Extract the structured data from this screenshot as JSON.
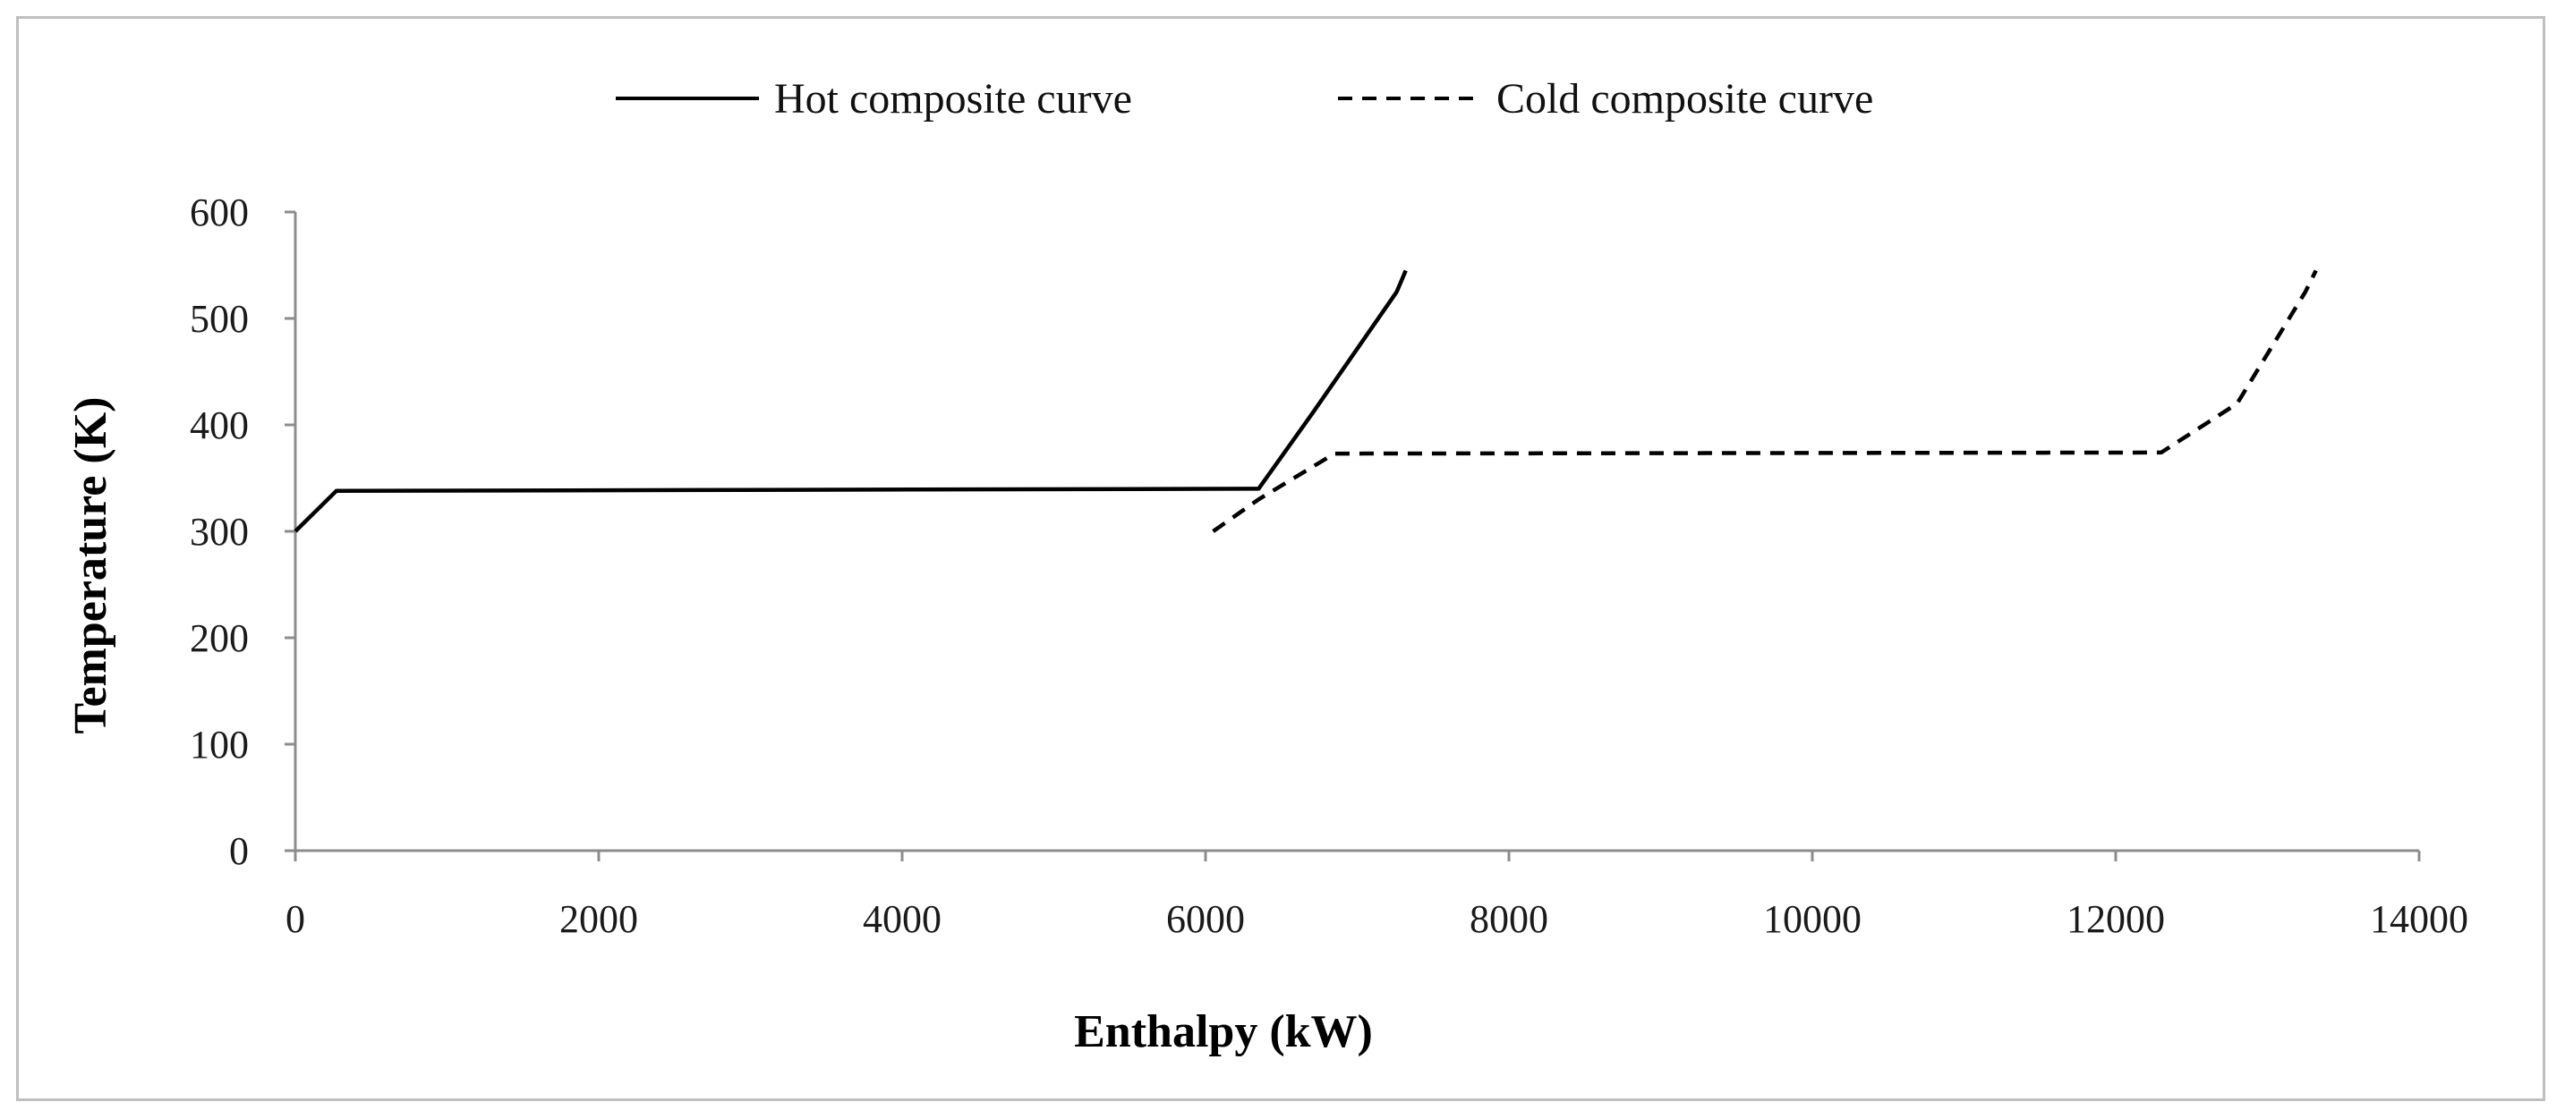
{
  "chart_data": {
    "type": "line",
    "title": "",
    "xlabel": "Enthalpy (kW)",
    "ylabel": "Temperature (K)",
    "xlim": [
      0,
      14000
    ],
    "ylim": [
      0,
      600
    ],
    "xticks": [
      0,
      2000,
      4000,
      6000,
      8000,
      10000,
      12000,
      14000
    ],
    "yticks": [
      0,
      100,
      200,
      300,
      400,
      500,
      600
    ],
    "xtick_labels": [
      "0",
      "2000",
      "4000",
      "6000",
      "8000",
      "10000",
      "12000",
      "14000"
    ],
    "ytick_labels": [
      "0",
      "100",
      "200",
      "300",
      "400",
      "500",
      "600"
    ],
    "grid": false,
    "legend_position": "top-center",
    "series": [
      {
        "name": "Hot composite curve",
        "style": "solid",
        "color": "#000000",
        "x": [
          0,
          270,
          6350,
          6700,
          7260,
          7320
        ],
        "y": [
          300,
          338,
          340,
          410,
          525,
          545
        ]
      },
      {
        "name": "Cold composite curve",
        "style": "dashed",
        "color": "#000000",
        "x": [
          6050,
          6350,
          6850,
          12300,
          12800,
          13250,
          13320
        ],
        "y": [
          300,
          330,
          373,
          374,
          420,
          525,
          545
        ]
      }
    ]
  }
}
